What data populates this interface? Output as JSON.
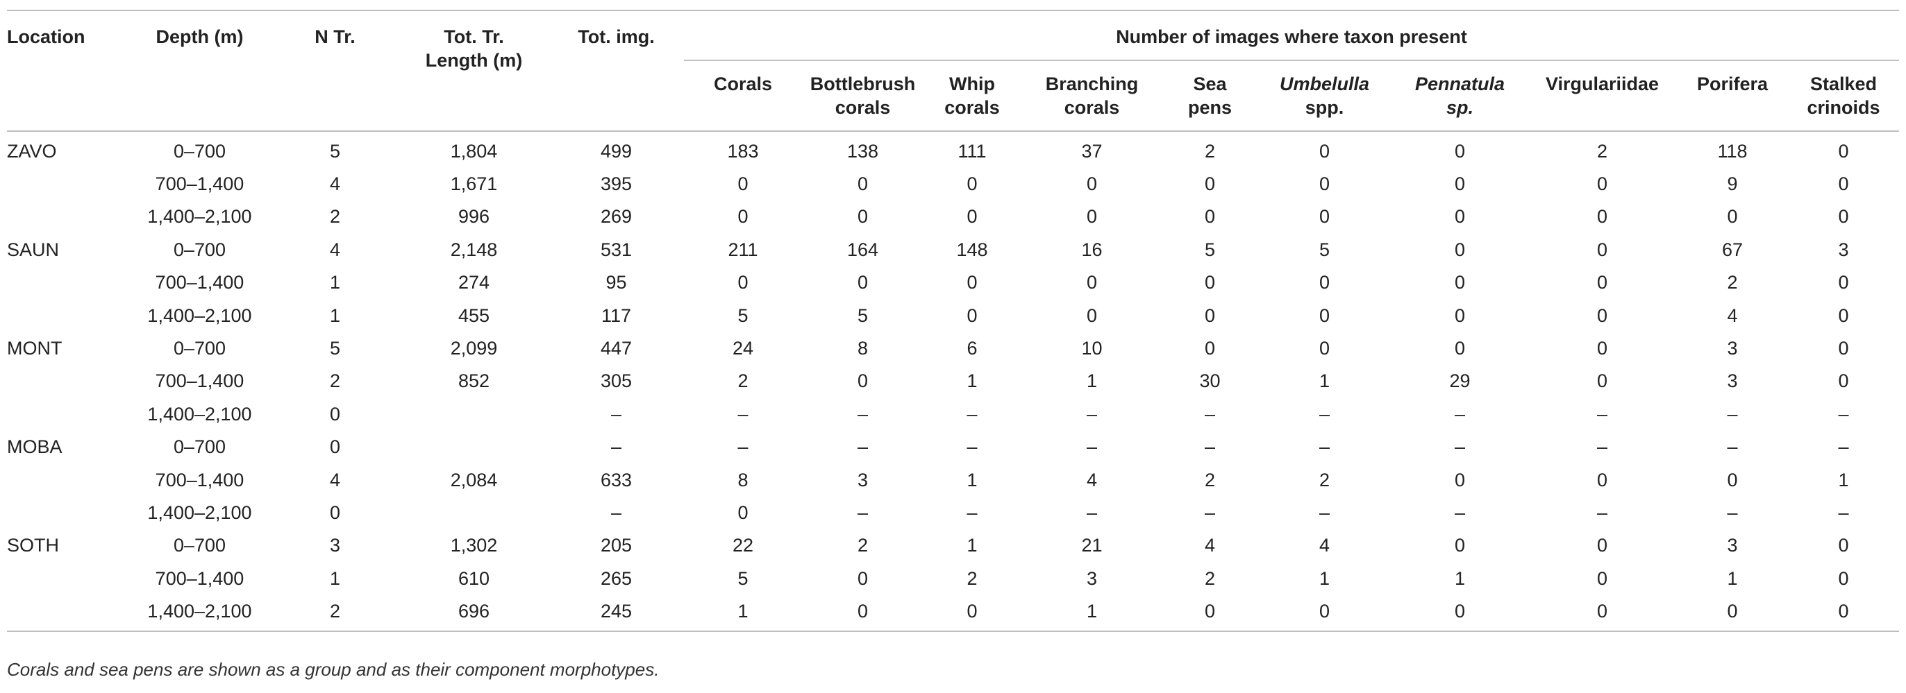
{
  "headers": {
    "location": "Location",
    "depth": "Depth (m)",
    "n_tr": "N Tr.",
    "tot_tr_length_1": "Tot. Tr.",
    "tot_tr_length_2": "Length (m)",
    "tot_img": "Tot. img.",
    "group": "Number of images where taxon present",
    "taxa": {
      "corals": "Corals",
      "bottlebrush_1": "Bottlebrush",
      "bottlebrush_2": "corals",
      "whip_1": "Whip",
      "whip_2": "corals",
      "branching_1": "Branching",
      "branching_2": "corals",
      "seapens_1": "Sea",
      "seapens_2": "pens",
      "umbelulla_1": "Umbelulla",
      "umbelulla_2": "spp.",
      "pennatula_1": "Pennatula",
      "pennatula_2": "sp.",
      "virgulariidae": "Virgulariidae",
      "porifera": "Porifera",
      "stalked_1": "Stalked",
      "stalked_2": "crinoids"
    }
  },
  "rows": [
    {
      "loc": "ZAVO",
      "depth": "0–700",
      "ntr": "5",
      "len": "1,804",
      "img": "499",
      "corals": "183",
      "bottlebrush": "138",
      "whip": "111",
      "branching": "37",
      "seapens": "2",
      "umbelulla": "0",
      "pennatula": "0",
      "virgulariidae": "2",
      "porifera": "118",
      "stalked": "0"
    },
    {
      "loc": "",
      "depth": "700–1,400",
      "ntr": "4",
      "len": "1,671",
      "img": "395",
      "corals": "0",
      "bottlebrush": "0",
      "whip": "0",
      "branching": "0",
      "seapens": "0",
      "umbelulla": "0",
      "pennatula": "0",
      "virgulariidae": "0",
      "porifera": "9",
      "stalked": "0"
    },
    {
      "loc": "",
      "depth": "1,400–2,100",
      "ntr": "2",
      "len": "996",
      "img": "269",
      "corals": "0",
      "bottlebrush": "0",
      "whip": "0",
      "branching": "0",
      "seapens": "0",
      "umbelulla": "0",
      "pennatula": "0",
      "virgulariidae": "0",
      "porifera": "0",
      "stalked": "0"
    },
    {
      "loc": "SAUN",
      "depth": "0–700",
      "ntr": "4",
      "len": "2,148",
      "img": "531",
      "corals": "211",
      "bottlebrush": "164",
      "whip": "148",
      "branching": "16",
      "seapens": "5",
      "umbelulla": "5",
      "pennatula": "0",
      "virgulariidae": "0",
      "porifera": "67",
      "stalked": "3"
    },
    {
      "loc": "",
      "depth": "700–1,400",
      "ntr": "1",
      "len": "274",
      "img": "95",
      "corals": "0",
      "bottlebrush": "0",
      "whip": "0",
      "branching": "0",
      "seapens": "0",
      "umbelulla": "0",
      "pennatula": "0",
      "virgulariidae": "0",
      "porifera": "2",
      "stalked": "0"
    },
    {
      "loc": "",
      "depth": "1,400–2,100",
      "ntr": "1",
      "len": "455",
      "img": "117",
      "corals": "5",
      "bottlebrush": "5",
      "whip": "0",
      "branching": "0",
      "seapens": "0",
      "umbelulla": "0",
      "pennatula": "0",
      "virgulariidae": "0",
      "porifera": "4",
      "stalked": "0"
    },
    {
      "loc": "MONT",
      "depth": "0–700",
      "ntr": "5",
      "len": "2,099",
      "img": "447",
      "corals": "24",
      "bottlebrush": "8",
      "whip": "6",
      "branching": "10",
      "seapens": "0",
      "umbelulla": "0",
      "pennatula": "0",
      "virgulariidae": "0",
      "porifera": "3",
      "stalked": "0"
    },
    {
      "loc": "",
      "depth": "700–1,400",
      "ntr": "2",
      "len": "852",
      "img": "305",
      "corals": "2",
      "bottlebrush": "0",
      "whip": "1",
      "branching": "1",
      "seapens": "30",
      "umbelulla": "1",
      "pennatula": "29",
      "virgulariidae": "0",
      "porifera": "3",
      "stalked": "0"
    },
    {
      "loc": "",
      "depth": "1,400–2,100",
      "ntr": "0",
      "len": "",
      "img": "–",
      "corals": "–",
      "bottlebrush": "–",
      "whip": "–",
      "branching": "–",
      "seapens": "–",
      "umbelulla": "–",
      "pennatula": "–",
      "virgulariidae": "–",
      "porifera": "–",
      "stalked": "–"
    },
    {
      "loc": "MOBA",
      "depth": "0–700",
      "ntr": "0",
      "len": "",
      "img": "–",
      "corals": "–",
      "bottlebrush": "–",
      "whip": "–",
      "branching": "–",
      "seapens": "–",
      "umbelulla": "–",
      "pennatula": "–",
      "virgulariidae": "–",
      "porifera": "–",
      "stalked": "–"
    },
    {
      "loc": "",
      "depth": "700–1,400",
      "ntr": "4",
      "len": "2,084",
      "img": "633",
      "corals": "8",
      "bottlebrush": "3",
      "whip": "1",
      "branching": "4",
      "seapens": "2",
      "umbelulla": "2",
      "pennatula": "0",
      "virgulariidae": "0",
      "porifera": "0",
      "stalked": "1"
    },
    {
      "loc": "",
      "depth": "1,400–2,100",
      "ntr": "0",
      "len": "",
      "img": "–",
      "corals": "0",
      "bottlebrush": "–",
      "whip": "–",
      "branching": "–",
      "seapens": "–",
      "umbelulla": "–",
      "pennatula": "–",
      "virgulariidae": "–",
      "porifera": "–",
      "stalked": "–"
    },
    {
      "loc": "SOTH",
      "depth": "0–700",
      "ntr": "3",
      "len": "1,302",
      "img": "205",
      "corals": "22",
      "bottlebrush": "2",
      "whip": "1",
      "branching": "21",
      "seapens": "4",
      "umbelulla": "4",
      "pennatula": "0",
      "virgulariidae": "0",
      "porifera": "3",
      "stalked": "0"
    },
    {
      "loc": "",
      "depth": "700–1,400",
      "ntr": "1",
      "len": "610",
      "img": "265",
      "corals": "5",
      "bottlebrush": "0",
      "whip": "2",
      "branching": "3",
      "seapens": "2",
      "umbelulla": "1",
      "pennatula": "1",
      "virgulariidae": "0",
      "porifera": "1",
      "stalked": "0"
    },
    {
      "loc": "",
      "depth": "1,400–2,100",
      "ntr": "2",
      "len": "696",
      "img": "245",
      "corals": "1",
      "bottlebrush": "0",
      "whip": "0",
      "branching": "1",
      "seapens": "0",
      "umbelulla": "0",
      "pennatula": "0",
      "virgulariidae": "0",
      "porifera": "0",
      "stalked": "0"
    }
  ],
  "footnote": "Corals and sea pens are shown as a group and as their component morphotypes."
}
